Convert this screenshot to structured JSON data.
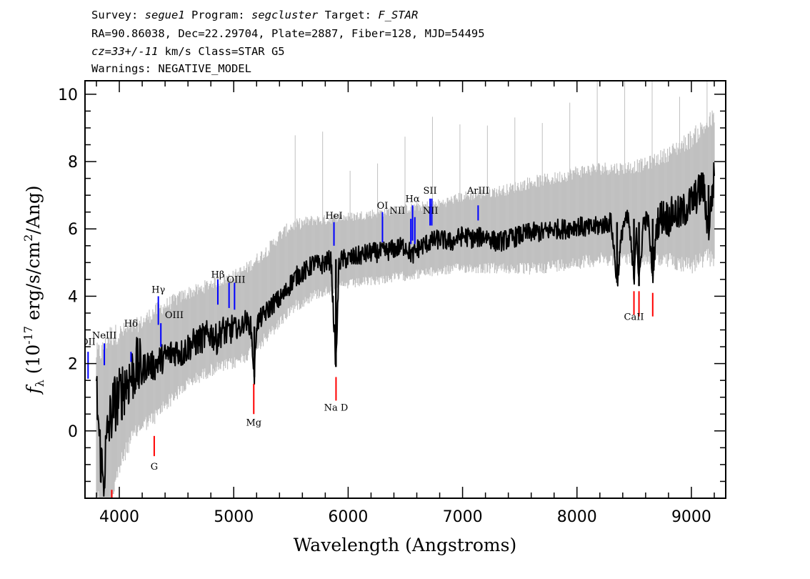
{
  "header": {
    "line1": {
      "survey_label": "Survey: ",
      "survey": "segue1",
      "program_label": " Program: ",
      "program": "segcluster",
      "target_label": " Target: ",
      "target": "F_STAR"
    },
    "line2": "RA=90.86038, Dec=22.29704, Plate=2887, Fiber=128, MJD=54495",
    "line3": {
      "cz": "cz=33+/-11",
      "rest": " km/s Class=STAR G5"
    },
    "line4": "Warnings: NEGATIVE_MODEL"
  },
  "chart_data": {
    "type": "line",
    "xlabel": "Wavelength (Angstroms)",
    "ylabel": "f_λ (10^-17 erg/s/cm^2/Ang)",
    "xlim": [
      3700,
      9300
    ],
    "ylim": [
      -2,
      10.4
    ],
    "x_ticks": [
      "4000",
      "5000",
      "6000",
      "7000",
      "8000",
      "9000"
    ],
    "y_ticks": [
      "0",
      "2",
      "4",
      "6",
      "8",
      "10"
    ],
    "grid": false,
    "series": [
      {
        "role": "error_band",
        "color": "#c0c0c0",
        "x": [
          3800,
          3850,
          3900,
          4000,
          4100,
          4200,
          4300,
          4400,
          4500,
          4600,
          4700,
          4800,
          4900,
          5000,
          5100,
          5200,
          5300,
          5400,
          5500,
          5600,
          5700,
          5800,
          5900,
          6000,
          6200,
          6400,
          6600,
          6800,
          7000,
          7200,
          7400,
          7600,
          7800,
          8000,
          8200,
          8400,
          8600,
          8800,
          9000,
          9200
        ],
        "lower": [
          -1.5,
          -2.0,
          -2.0,
          -0.8,
          0.0,
          0.4,
          0.6,
          1.0,
          1.3,
          1.6,
          1.8,
          2.0,
          2.1,
          2.2,
          2.4,
          2.7,
          3.0,
          3.4,
          3.8,
          4.0,
          4.2,
          4.3,
          4.4,
          4.5,
          4.6,
          4.7,
          4.8,
          4.9,
          5.0,
          5.0,
          5.0,
          5.0,
          5.1,
          5.2,
          5.3,
          5.3,
          5.3,
          5.3,
          5.2,
          5.5
        ],
        "upper": [
          2.0,
          2.0,
          2.4,
          2.6,
          2.8,
          3.0,
          3.3,
          3.5,
          3.7,
          3.9,
          4.0,
          4.2,
          4.3,
          4.4,
          4.6,
          4.9,
          5.2,
          5.6,
          5.9,
          6.0,
          6.1,
          6.1,
          6.2,
          6.2,
          6.3,
          6.4,
          6.5,
          6.6,
          6.8,
          6.9,
          7.0,
          7.2,
          7.3,
          7.5,
          7.6,
          7.6,
          7.7,
          8.0,
          8.4,
          9.0
        ]
      },
      {
        "role": "flux",
        "color": "#000000",
        "x": [
          3800,
          3830,
          3860,
          3900,
          3950,
          4000,
          4050,
          4100,
          4150,
          4200,
          4250,
          4300,
          4350,
          4400,
          4450,
          4500,
          4550,
          4600,
          4650,
          4700,
          4750,
          4800,
          4850,
          4900,
          4950,
          5000,
          5050,
          5100,
          5150,
          5180,
          5200,
          5250,
          5300,
          5350,
          5400,
          5450,
          5500,
          5550,
          5600,
          5650,
          5700,
          5750,
          5800,
          5850,
          5893,
          5920,
          5950,
          6000,
          6100,
          6200,
          6300,
          6400,
          6500,
          6563,
          6600,
          6700,
          6800,
          6900,
          7000,
          7100,
          7200,
          7300,
          7400,
          7500,
          7600,
          7700,
          7800,
          7900,
          8000,
          8100,
          8200,
          8300,
          8350,
          8400,
          8450,
          8498,
          8520,
          8542,
          8580,
          8620,
          8662,
          8700,
          8750,
          8800,
          8850,
          8900,
          8950,
          9000,
          9050,
          9100,
          9150,
          9200
        ],
        "y": [
          1.2,
          -0.5,
          -1.5,
          0.0,
          0.8,
          1.0,
          1.4,
          1.6,
          1.9,
          1.8,
          2.0,
          1.9,
          2.1,
          2.2,
          2.3,
          2.4,
          2.3,
          2.5,
          2.6,
          2.7,
          2.8,
          2.9,
          2.7,
          3.0,
          2.9,
          3.1,
          3.0,
          3.3,
          3.1,
          1.6,
          3.2,
          3.4,
          3.6,
          3.8,
          3.9,
          4.1,
          4.4,
          4.6,
          4.7,
          4.8,
          5.0,
          4.9,
          5.0,
          5.1,
          1.9,
          5.0,
          5.1,
          5.1,
          5.2,
          5.3,
          5.3,
          5.4,
          5.5,
          5.2,
          5.4,
          5.6,
          5.7,
          5.6,
          5.8,
          5.7,
          5.8,
          5.6,
          5.7,
          5.8,
          5.9,
          5.9,
          6.0,
          6.0,
          6.1,
          6.0,
          6.1,
          6.2,
          4.4,
          6.1,
          6.3,
          4.5,
          6.2,
          4.3,
          6.2,
          6.3,
          4.6,
          6.2,
          6.4,
          6.3,
          6.5,
          6.4,
          6.6,
          6.8,
          7.0,
          7.3,
          6.0,
          7.6
        ]
      }
    ],
    "line_markers": {
      "emission": {
        "color": "#0000ff",
        "items": [
          {
            "label": "OII",
            "x": 3727,
            "y_top": 2.35,
            "y_bottom": 1.55
          },
          {
            "label": "NeIII",
            "x": 3869,
            "y_top": 2.6,
            "y_bottom": 1.95
          },
          {
            "label": "Hδ",
            "x": 4102,
            "y_top": 2.35,
            "y_bottom": 2.05
          },
          {
            "label": "Hγ",
            "x": 4341,
            "y_top": 4.0,
            "y_bottom": 3.15
          },
          {
            "label": "OIII",
            "x": 4363,
            "y_top": 3.2,
            "y_bottom": 2.5
          },
          {
            "label": "Hβ",
            "x": 4861,
            "y_top": 4.5,
            "y_bottom": 3.75
          },
          {
            "label": "OIII",
            "x": 4959,
            "y_top": 4.4,
            "y_bottom": 3.65
          },
          {
            "label": "OIII",
            "x": 5007,
            "y_top": 4.4,
            "y_bottom": 3.6
          },
          {
            "label": "HeI",
            "x": 5876,
            "y_top": 6.2,
            "y_bottom": 5.5
          },
          {
            "label": "OI",
            "x": 6300,
            "y_top": 6.5,
            "y_bottom": 5.6
          },
          {
            "label": "NII",
            "x": 6548,
            "y_top": 6.3,
            "y_bottom": 5.55
          },
          {
            "label": "Hα",
            "x": 6563,
            "y_top": 6.7,
            "y_bottom": 5.65
          },
          {
            "label": "NII",
            "x": 6583,
            "y_top": 6.35,
            "y_bottom": 5.55
          },
          {
            "label": "SII",
            "x": 6716,
            "y_top": 6.9,
            "y_bottom": 6.1
          },
          {
            "label": "SII",
            "x": 6731,
            "y_top": 6.9,
            "y_bottom": 6.1
          },
          {
            "label": "ArIII",
            "x": 7136,
            "y_top": 6.7,
            "y_bottom": 6.25
          }
        ]
      },
      "absorption": {
        "color": "#ff0000",
        "items": [
          {
            "label": "K",
            "x": 3934,
            "y_top": -1.75,
            "y_bottom": -2.0
          },
          {
            "label": "G",
            "x": 4305,
            "y_top": -0.15,
            "y_bottom": -0.75
          },
          {
            "label": "Mg",
            "x": 5175,
            "y_top": 1.4,
            "y_bottom": 0.5
          },
          {
            "label": "Na D",
            "x": 5894,
            "y_top": 1.6,
            "y_bottom": 0.9
          },
          {
            "label": "CaII",
            "x": 8498,
            "y_top": 4.15,
            "y_bottom": 3.45
          },
          {
            "label": "CaII",
            "x": 8542,
            "y_top": 4.15,
            "y_bottom": 3.4
          },
          {
            "label": "CaII",
            "x": 8662,
            "y_top": 4.1,
            "y_bottom": 3.4
          }
        ]
      },
      "visible_labels": [
        {
          "text": "NeIII",
          "x": 3869,
          "y": 2.75
        },
        {
          "text": "Hδ",
          "x": 4102,
          "y": 3.1
        },
        {
          "text": "Hγ",
          "x": 4341,
          "y": 4.1
        },
        {
          "text": "OIII",
          "x": 4480,
          "y": 3.35
        },
        {
          "text": "Hβ",
          "x": 4861,
          "y": 4.55
        },
        {
          "text": "OIII",
          "x": 5020,
          "y": 4.4
        },
        {
          "text": "HeI",
          "x": 5876,
          "y": 6.3
        },
        {
          "text": "OI",
          "x": 6300,
          "y": 6.6
        },
        {
          "text": "NII",
          "x": 6430,
          "y": 6.45
        },
        {
          "text": "Hα",
          "x": 6563,
          "y": 6.8
        },
        {
          "text": "NII",
          "x": 6720,
          "y": 6.45
        },
        {
          "text": "SII",
          "x": 6716,
          "y": 7.05
        },
        {
          "text": "ArIII",
          "x": 7136,
          "y": 7.05
        },
        {
          "text": "G",
          "x": 4305,
          "y": -1.15
        },
        {
          "text": "Mg",
          "x": 5175,
          "y": 0.15
        },
        {
          "text": "Na  D",
          "x": 5894,
          "y": 0.6
        },
        {
          "text": "CaII",
          "x": 8498,
          "y": 3.3
        }
      ],
      "clipped_label": {
        "text": "OII",
        "x": 3727,
        "y": 2.55
      }
    }
  }
}
